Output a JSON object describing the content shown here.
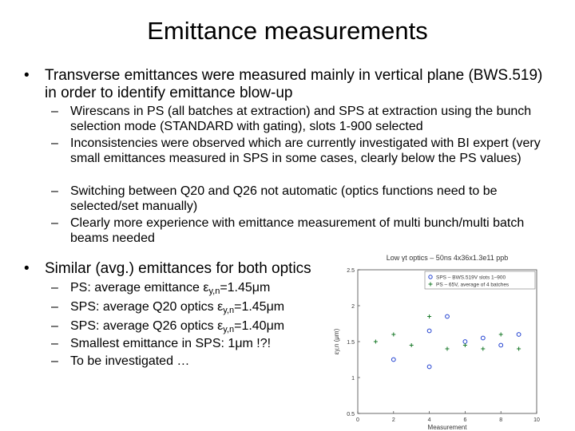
{
  "title": "Emittance measurements",
  "bullets": [
    {
      "text": "Transverse emittances were measured mainly in vertical plane (BWS.519) in order to identify emittance blow-up",
      "sub": [
        "Wirescans in PS (all batches at extraction) and SPS at extraction using the bunch selection mode (STANDARD with gating), slots 1-900 selected",
        "Inconsistencies were observed which are currently investigated with BI expert (very small emittances measured in SPS in some cases, clearly below the PS values)",
        "Switching between Q20 and Q26 not automatic (optics functions need to be selected/set manually)",
        "Clearly more experience with emittance measurement of multi bunch/multi batch beams needed"
      ]
    },
    {
      "text": "Similar (avg.) emittances for both optics",
      "sub": [
        {
          "pre": "PS: average emittance ε",
          "sub": "y,n",
          "post": "=1.45μm"
        },
        {
          "pre": "SPS: average Q20 optics ε",
          "sub": "y,n",
          "post": "=1.45μm"
        },
        {
          "pre": "SPS: average Q26 optics ε",
          "sub": "y,n",
          "post": "=1.40μm"
        },
        "Smallest emittance in SPS: 1μm !?!",
        "To be investigated …"
      ]
    }
  ],
  "symbols": {
    "bullet": "•",
    "dash": "–"
  },
  "chart_data": {
    "type": "scatter",
    "title": "Low γt optics – 50ns 4x36x1.3e11 ppb",
    "xlabel": "Measurement",
    "ylabel": "εy,n (μm)",
    "xlim": [
      0,
      10
    ],
    "ylim": [
      0.5,
      2.5
    ],
    "xticks": [
      "0",
      "2",
      "4",
      "6",
      "8",
      "10"
    ],
    "yticks": [
      "0.5",
      "1",
      "1.5",
      "2",
      "2.5"
    ],
    "legend_position": "top-right",
    "series": [
      {
        "name": "SPS – BWS.519V slots 1–900",
        "marker": "circle",
        "color": "#1f3fd0",
        "x": [
          2,
          4,
          4,
          5,
          6,
          7,
          8,
          9
        ],
        "y": [
          1.25,
          1.15,
          1.65,
          1.85,
          1.5,
          1.55,
          1.45,
          1.6
        ]
      },
      {
        "name": "PS – 65V, average of 4 batches",
        "marker": "plus",
        "color": "#1a7a2a",
        "x": [
          1,
          2,
          3,
          4,
          5,
          6,
          7,
          8,
          9
        ],
        "y": [
          1.5,
          1.6,
          1.45,
          1.85,
          1.4,
          1.45,
          1.4,
          1.6,
          1.4
        ]
      }
    ]
  }
}
